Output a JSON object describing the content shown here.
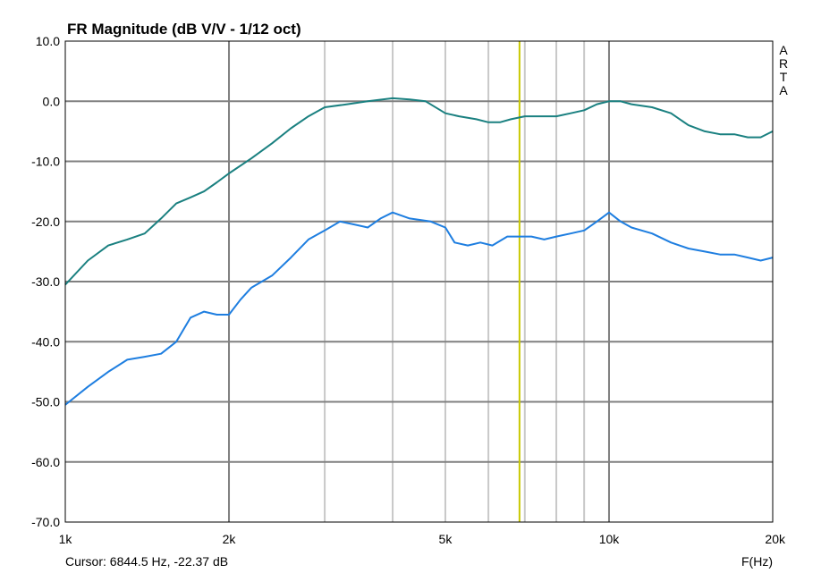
{
  "chart_data": {
    "type": "line",
    "title": "FR Magnitude (dB V/V - 1/12 oct)",
    "xlabel": "F(Hz)",
    "ylabel": "",
    "x_scale": "log",
    "xlim": [
      1000,
      20000
    ],
    "ylim": [
      -70,
      10
    ],
    "grid": true,
    "x_tick_labels": [
      {
        "value": 1000,
        "label": "1k"
      },
      {
        "value": 2000,
        "label": "2k"
      },
      {
        "value": 5000,
        "label": "5k"
      },
      {
        "value": 10000,
        "label": "10k"
      },
      {
        "value": 20000,
        "label": "20k"
      }
    ],
    "y_tick_labels": [
      {
        "value": 10,
        "label": "10.0"
      },
      {
        "value": 0,
        "label": "0.0"
      },
      {
        "value": -10,
        "label": "-10.0"
      },
      {
        "value": -20,
        "label": "-20.0"
      },
      {
        "value": -30,
        "label": "-30.0"
      },
      {
        "value": -40,
        "label": "-40.0"
      },
      {
        "value": -50,
        "label": "-50.0"
      },
      {
        "value": -60,
        "label": "-60.0"
      },
      {
        "value": -70,
        "label": "-70.0"
      }
    ],
    "series": [
      {
        "color": "#1a8080",
        "x": [
          1000,
          1100,
          1200,
          1300,
          1400,
          1500,
          1600,
          1700,
          1800,
          1900,
          2000,
          2200,
          2400,
          2600,
          2800,
          3000,
          3300,
          3600,
          4000,
          4300,
          4600,
          5000,
          5300,
          5700,
          6000,
          6300,
          6600,
          7000,
          7500,
          8000,
          8500,
          9000,
          9500,
          10000,
          10500,
          11000,
          12000,
          13000,
          14000,
          15000,
          16000,
          17000,
          18000,
          19000,
          20000
        ],
        "values": [
          -30.5,
          -26.5,
          -24.0,
          -23.0,
          -22.0,
          -19.5,
          -17.0,
          -16.0,
          -15.0,
          -13.5,
          -12.0,
          -9.5,
          -7.0,
          -4.5,
          -2.5,
          -1.0,
          -0.5,
          0.0,
          0.5,
          0.3,
          0.0,
          -2.0,
          -2.5,
          -3.0,
          -3.5,
          -3.5,
          -3.0,
          -2.5,
          -2.5,
          -2.5,
          -2.0,
          -1.5,
          -0.5,
          0.0,
          0.0,
          -0.5,
          -1.0,
          -2.0,
          -4.0,
          -5.0,
          -5.5,
          -5.5,
          -6.0,
          -6.0,
          -5.0
        ]
      },
      {
        "color": "#1e7ee0",
        "x": [
          1000,
          1100,
          1200,
          1300,
          1400,
          1500,
          1600,
          1700,
          1800,
          1900,
          2000,
          2100,
          2200,
          2400,
          2600,
          2800,
          3000,
          3200,
          3400,
          3600,
          3800,
          4000,
          4300,
          4700,
          5000,
          5200,
          5500,
          5800,
          6100,
          6500,
          6800,
          7200,
          7600,
          8000,
          8500,
          9000,
          9500,
          10000,
          10500,
          11000,
          12000,
          13000,
          14000,
          15000,
          16000,
          17000,
          18000,
          19000,
          20000
        ],
        "values": [
          -50.5,
          -47.5,
          -45.0,
          -43.0,
          -42.5,
          -42.0,
          -40.0,
          -36.0,
          -35.0,
          -35.5,
          -35.5,
          -33.0,
          -31.0,
          -29.0,
          -26.0,
          -23.0,
          -21.5,
          -20.0,
          -20.5,
          -21.0,
          -19.5,
          -18.5,
          -19.5,
          -20.0,
          -21.0,
          -23.5,
          -24.0,
          -23.5,
          -24.0,
          -22.5,
          -22.5,
          -22.5,
          -23.0,
          -22.5,
          -22.0,
          -21.5,
          -20.0,
          -18.5,
          -20.0,
          -21.0,
          -22.0,
          -23.5,
          -24.5,
          -25.0,
          -25.5,
          -25.5,
          -26.0,
          -26.5,
          -26.0
        ]
      }
    ],
    "cursor": {
      "x": 6844.5,
      "color": "#c8c800"
    },
    "cursor_label": "Cursor: 6844.5 Hz, -22.37 dB",
    "side_label": [
      "A",
      "R",
      "T",
      "A"
    ]
  }
}
